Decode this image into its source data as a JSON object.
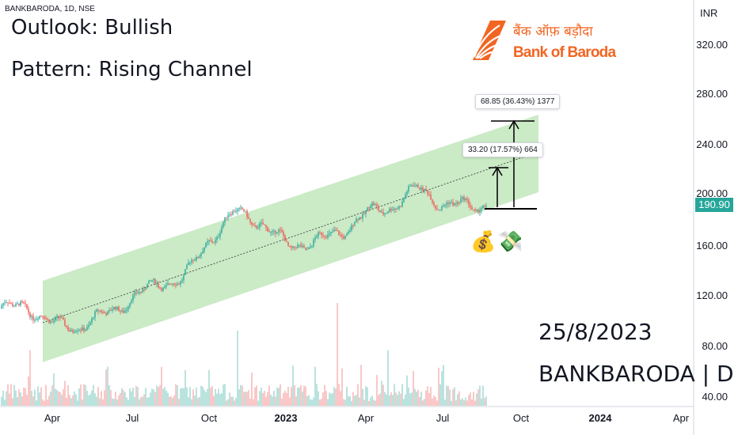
{
  "header": {
    "symbol": "BANKBARODA, 1D, NSE",
    "currency": "INR"
  },
  "annotations": {
    "outlook": "Outlook: Bullish",
    "pattern": "Pattern: Rising Channel",
    "date": "25/8/2023",
    "ticker_label": "BANKBARODA | D",
    "measure_upper": "68.85 (36.43%) 1377",
    "measure_lower": "33.20 (17.57%) 664",
    "emoji_money_bag": "💰",
    "emoji_money_wings": "💸"
  },
  "logo": {
    "hindi": "बैंक ऑफ़ बड़ौदा",
    "english": "Bank of Baroda",
    "color": "#f26522",
    "icon": "bank-of-baroda-logo-icon"
  },
  "colors": {
    "up": "#26a69a",
    "down": "#ef5350",
    "channel_fill": "#b9e3b3",
    "price_tag": "#26a69a"
  },
  "chart_data": {
    "type": "candlestick",
    "x_ticks": [
      "Apr",
      "Jul",
      "Oct",
      "2023",
      "Apr",
      "Jul",
      "Oct",
      "2024",
      "Apr"
    ],
    "y_ticks": [
      "320.00",
      "280.00",
      "240.00",
      "200.00",
      "160.00",
      "120.00",
      "80.00",
      "40.00"
    ],
    "ylim": [
      40,
      320
    ],
    "last_price": "190.90",
    "price_path": [
      [
        "Mar",
        110
      ],
      [
        "Apr",
        112
      ],
      [
        "May",
        98
      ],
      [
        "Jun",
        95
      ],
      [
        "Jul",
        105
      ],
      [
        "Aug",
        117
      ],
      [
        "Sep",
        130
      ],
      [
        "Oct",
        133
      ],
      [
        "Nov",
        165
      ],
      [
        "Dec",
        186
      ],
      [
        "Jan",
        178
      ],
      [
        "Feb",
        160
      ],
      [
        "Mar",
        163
      ],
      [
        "Apr",
        170
      ],
      [
        "May",
        185
      ],
      [
        "Jun",
        190
      ],
      [
        "Jul",
        205
      ],
      [
        "Aug",
        191
      ]
    ],
    "channel": {
      "lower": [
        [
          "Mar 2022",
          68
        ],
        [
          "Sep 2023",
          200
        ]
      ],
      "upper": [
        [
          "Mar 2022",
          150
        ],
        [
          "Sep 2023",
          260
        ]
      ]
    },
    "targets": [
      222,
      260
    ],
    "base": 190.9
  }
}
